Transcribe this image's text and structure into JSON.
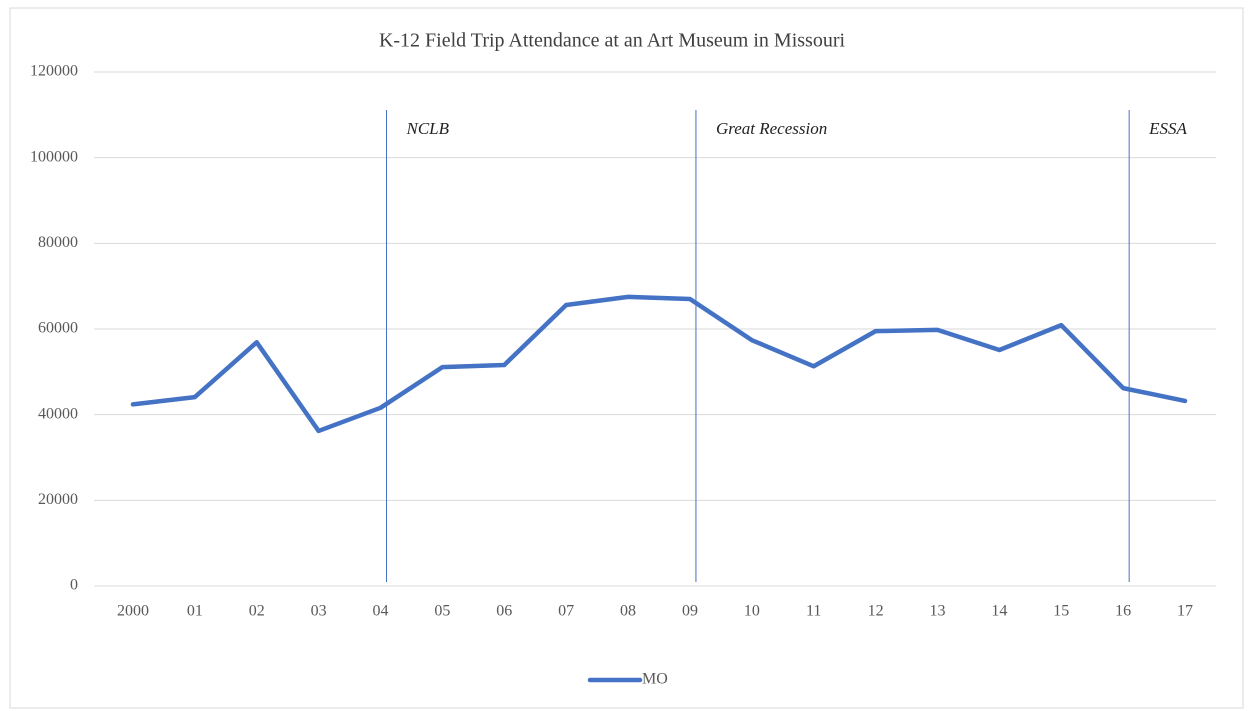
{
  "chart_data": {
    "type": "line",
    "title": "K-12 Field Trip Attendance at an Art Museum in Missouri",
    "categories": [
      "2000",
      "01",
      "02",
      "03",
      "04",
      "05",
      "06",
      "07",
      "08",
      "09",
      "10",
      "11",
      "12",
      "13",
      "14",
      "15",
      "16",
      "17"
    ],
    "series": [
      {
        "name": "MO",
        "color": "#4472c4",
        "values": [
          42400,
          44100,
          56900,
          36200,
          41600,
          51100,
          51600,
          65600,
          67500,
          67000,
          57400,
          51300,
          59500,
          59800,
          55100,
          60900,
          46200,
          43200
        ]
      }
    ],
    "ylim": [
      0,
      120000
    ],
    "yticks": [
      0,
      20000,
      40000,
      60000,
      80000,
      100000,
      120000
    ],
    "grid": true,
    "legend": "bottom",
    "annotations": [
      {
        "text": "NCLB",
        "category": "04"
      },
      {
        "text": "Great Recession",
        "category": "09"
      },
      {
        "text": "ESSA",
        "category": "16"
      }
    ]
  }
}
